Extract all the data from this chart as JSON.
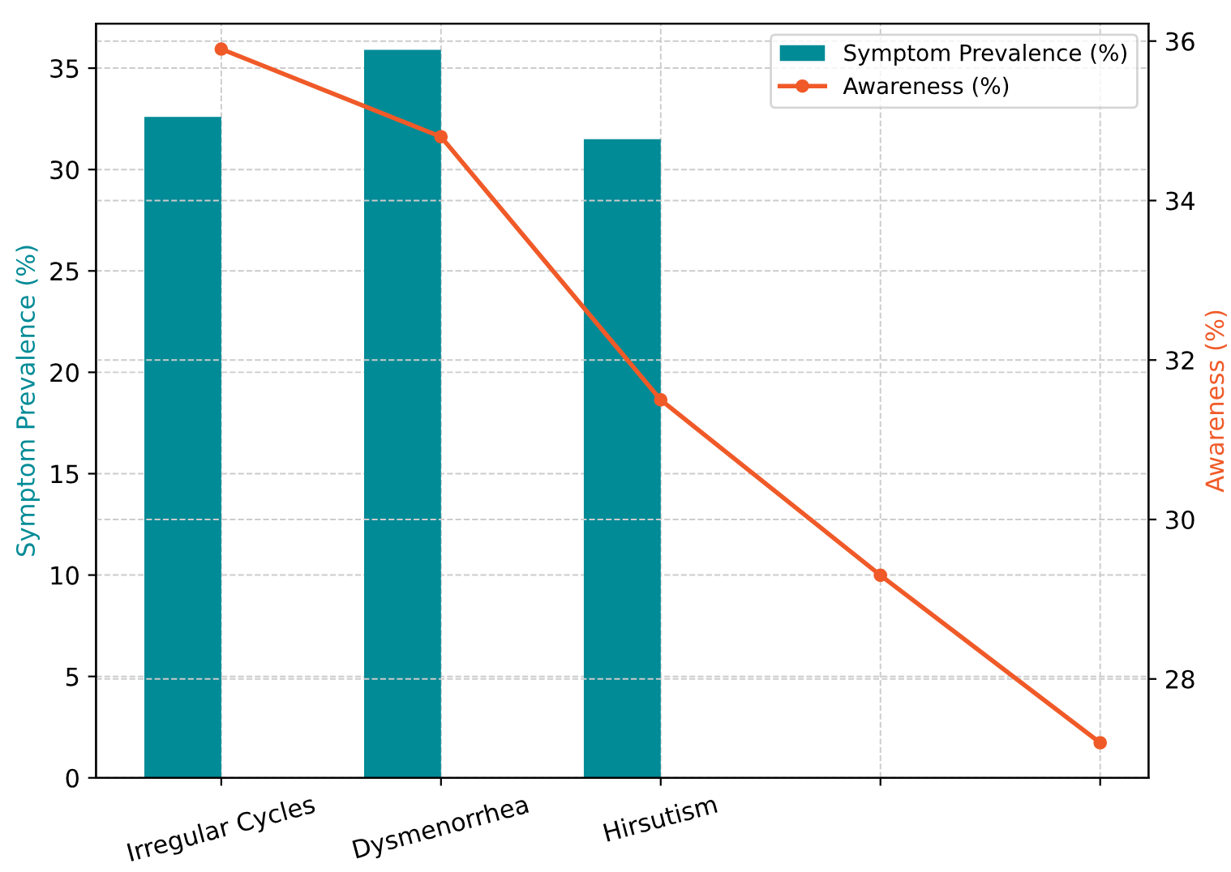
{
  "chart_data": {
    "type": "bar",
    "categories": [
      "Irregular Cycles",
      "Dysmenorrhea",
      "Hirsutism",
      null,
      null
    ],
    "series": [
      {
        "name": "Symptom Prevalence (%)",
        "color": "#008b96",
        "values": [
          32.6,
          35.9,
          31.5,
          null,
          null
        ]
      },
      {
        "name": "Awareness (%)",
        "type": "line",
        "axis": "y2",
        "color": "#f05a28",
        "values": [
          35.9,
          34.8,
          31.5,
          29.3,
          27.2
        ]
      }
    ],
    "ylabel": "Symptom Prevalence (%)",
    "y2label": "Awareness (%)",
    "ylim": [
      0,
      37.2
    ],
    "yticks": [
      0,
      5,
      10,
      15,
      20,
      25,
      30,
      35
    ],
    "y2lim": [
      26.76,
      36.22
    ],
    "y2ticks": [
      28,
      30,
      32,
      34,
      36
    ],
    "grid": true,
    "legend": "top right",
    "marker": "circle",
    "line_style": "solid"
  }
}
